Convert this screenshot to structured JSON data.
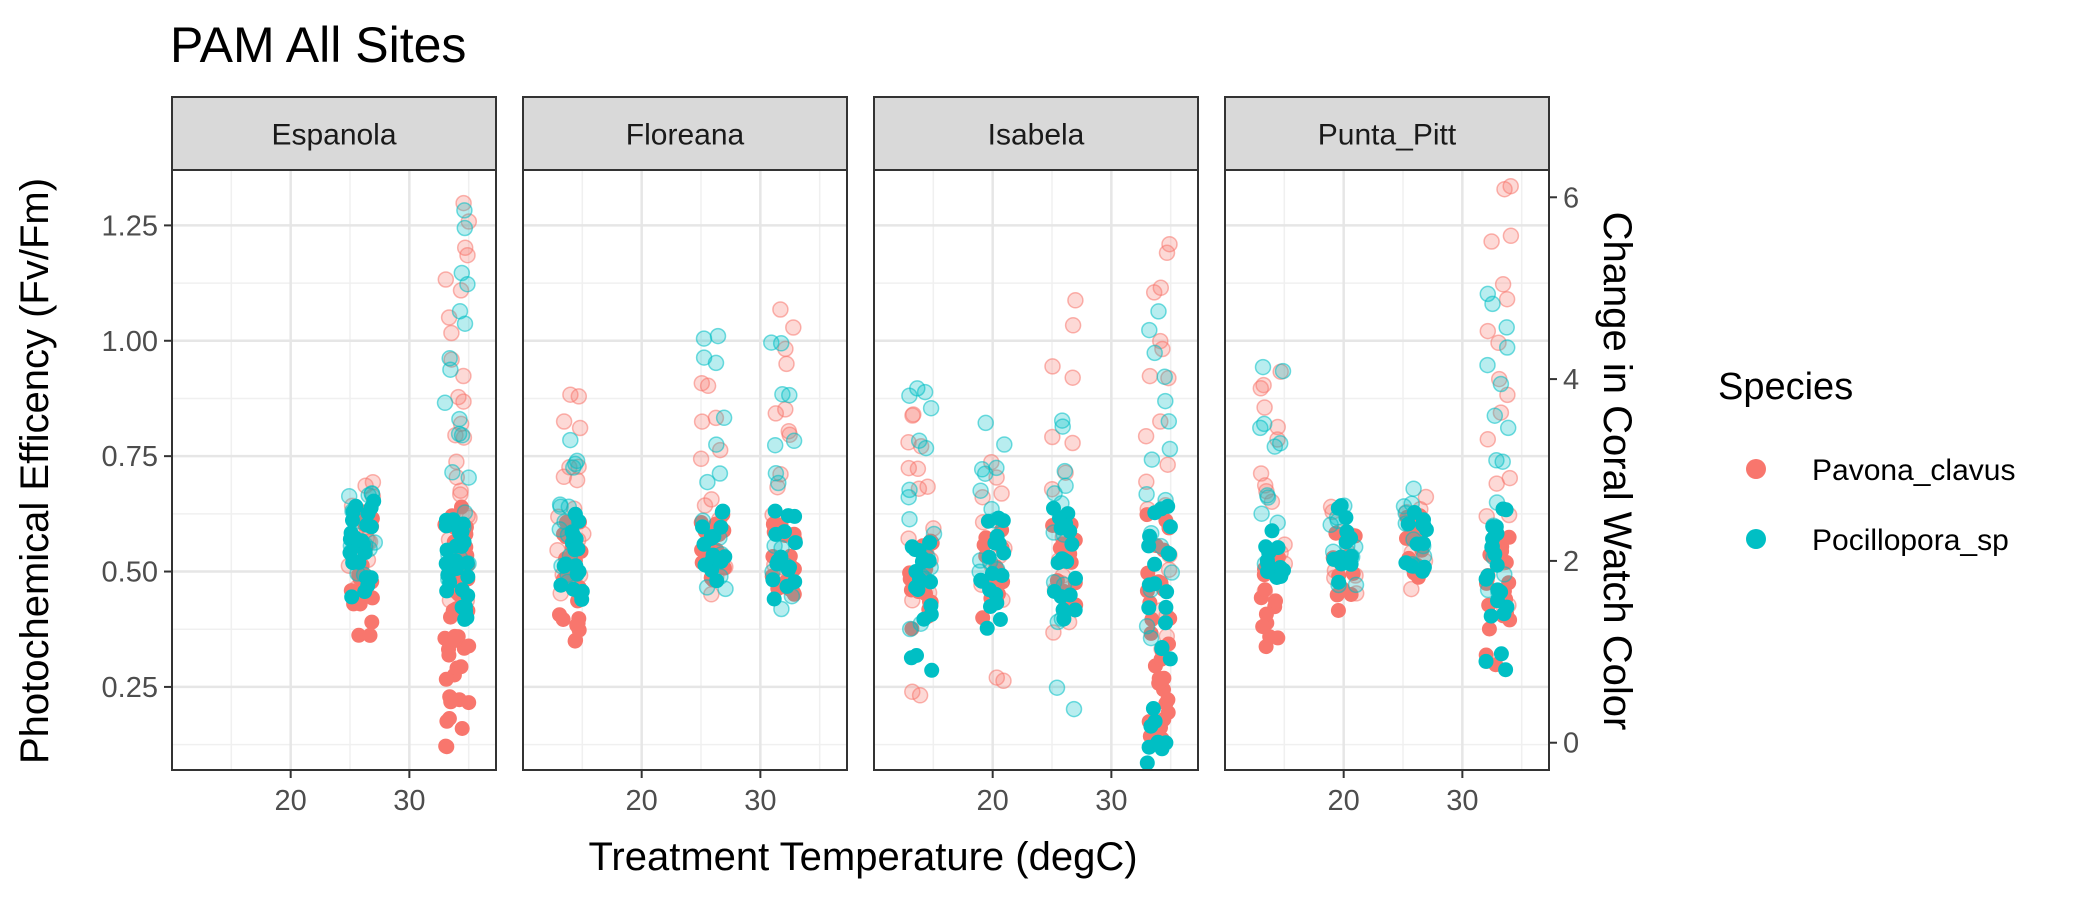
{
  "chart_data": {
    "type": "scatter",
    "title": "PAM All Sites",
    "xlabel": "Treatment Temperature (degC)",
    "ylabel": "Photochemical Efficency (Fv/Fm)",
    "y2label": "Change in Coral Watch Color",
    "xlim": [
      10,
      37.3
    ],
    "ylim": [
      0.07,
      1.37
    ],
    "y2lim": [
      -0.3,
      6.3
    ],
    "x_ticks": [
      "20",
      "30"
    ],
    "y_ticks": [
      "0.25",
      "0.50",
      "0.75",
      "1.00",
      "1.25"
    ],
    "y2_ticks": [
      "0",
      "2",
      "4",
      "6"
    ],
    "grid": true,
    "panels": [
      "Espanola",
      "Floreana",
      "Isabela",
      "Punta_Pitt"
    ],
    "legend": {
      "title": "Species",
      "position": "right",
      "entries": [
        {
          "name": "Pavona_clavus",
          "color": "#F8766D"
        },
        {
          "name": "Pocillopora_sp",
          "color": "#00BFC4"
        }
      ]
    },
    "groups": [
      {
        "panel": "Espanola",
        "x": 26,
        "species": "Pavona_clavus",
        "pam": [
          0.37,
          0.44,
          0.47,
          0.5,
          0.53,
          0.56,
          0.6,
          0.62
        ],
        "color_change": [
          1.8,
          2.0,
          2.2,
          2.3,
          2.5,
          2.6,
          2.8
        ]
      },
      {
        "panel": "Espanola",
        "x": 26,
        "species": "Pocillopora_sp",
        "pam": [
          0.47,
          0.5,
          0.52,
          0.55,
          0.57,
          0.59,
          0.62,
          0.63
        ],
        "color_change": [
          1.9,
          2.0,
          2.2,
          2.3,
          2.4,
          2.6,
          2.8
        ]
      },
      {
        "panel": "Espanola",
        "x": 34,
        "species": "Pavona_clavus",
        "pam": [
          0.14,
          0.2,
          0.22,
          0.28,
          0.31,
          0.34,
          0.36,
          0.38,
          0.4,
          0.42,
          0.44,
          0.46,
          0.48,
          0.5,
          0.52,
          0.55,
          0.58,
          0.6,
          0.62
        ],
        "color_change": [
          1.6,
          1.8,
          2.0,
          2.3,
          2.6,
          2.9,
          3.2,
          3.5,
          3.8,
          4.2,
          4.6,
          5.0,
          5.3,
          5.9
        ]
      },
      {
        "panel": "Espanola",
        "x": 34,
        "species": "Pocillopora_sp",
        "pam": [
          0.4,
          0.44,
          0.47,
          0.5,
          0.52,
          0.54,
          0.56,
          0.58,
          0.6,
          0.62
        ],
        "color_change": [
          1.9,
          2.2,
          2.5,
          2.9,
          3.3,
          3.7,
          4.2,
          4.7,
          5.2,
          5.8
        ]
      },
      {
        "panel": "Floreana",
        "x": 14,
        "species": "Pavona_clavus",
        "pam": [
          0.36,
          0.39,
          0.42,
          0.45,
          0.48,
          0.51,
          0.54,
          0.57,
          0.6
        ],
        "color_change": [
          1.8,
          2.0,
          2.2,
          2.4,
          2.6,
          2.8,
          3.1,
          3.4,
          3.7
        ]
      },
      {
        "panel": "Floreana",
        "x": 14,
        "species": "Pocillopora_sp",
        "pam": [
          0.45,
          0.48,
          0.51,
          0.54,
          0.57,
          0.6
        ],
        "color_change": [
          1.9,
          2.1,
          2.3,
          2.5,
          2.7,
          3.0,
          3.2
        ]
      },
      {
        "panel": "Floreana",
        "x": 26,
        "species": "Pavona_clavus",
        "pam": [
          0.48,
          0.5,
          0.53,
          0.56,
          0.59,
          0.61
        ],
        "color_change": [
          1.8,
          2.0,
          2.3,
          2.7,
          3.1,
          3.6,
          4.0
        ]
      },
      {
        "panel": "Floreana",
        "x": 26,
        "species": "Pocillopora_sp",
        "pam": [
          0.5,
          0.53,
          0.56,
          0.59,
          0.62
        ],
        "color_change": [
          1.7,
          2.0,
          2.4,
          2.9,
          3.4,
          4.1,
          4.5
        ]
      },
      {
        "panel": "Floreana",
        "x": 32,
        "species": "Pavona_clavus",
        "pam": [
          0.44,
          0.47,
          0.5,
          0.53,
          0.56,
          0.59,
          0.61
        ],
        "color_change": [
          1.8,
          2.1,
          2.5,
          2.9,
          3.3,
          3.7,
          4.2,
          4.6
        ]
      },
      {
        "panel": "Floreana",
        "x": 32,
        "species": "Pocillopora_sp",
        "pam": [
          0.46,
          0.5,
          0.54,
          0.58,
          0.61
        ],
        "color_change": [
          1.5,
          1.9,
          2.3,
          2.8,
          3.3,
          3.9,
          4.5
        ]
      },
      {
        "panel": "Isabela",
        "x": 14,
        "species": "Pavona_clavus",
        "pam": [
          0.4,
          0.44,
          0.48,
          0.52,
          0.55
        ],
        "color_change": [
          0.6,
          1.6,
          2.0,
          2.3,
          2.7,
          3.0,
          3.3,
          3.6
        ]
      },
      {
        "panel": "Isabela",
        "x": 14,
        "species": "Pocillopora_sp",
        "pam": [
          0.31,
          0.42,
          0.46,
          0.5,
          0.54,
          0.57
        ],
        "color_change": [
          1.3,
          1.8,
          2.1,
          2.4,
          2.8,
          3.2,
          3.7,
          4.0
        ]
      },
      {
        "panel": "Isabela",
        "x": 20,
        "species": "Pavona_clavus",
        "pam": [
          0.42,
          0.46,
          0.5,
          0.54,
          0.58
        ],
        "color_change": [
          0.6,
          1.7,
          2.0,
          2.3,
          2.7,
          3.0
        ]
      },
      {
        "panel": "Isabela",
        "x": 20,
        "species": "Pocillopora_sp",
        "pam": [
          0.4,
          0.44,
          0.48,
          0.52,
          0.56,
          0.6
        ],
        "color_change": [
          1.8,
          2.1,
          2.4,
          2.8,
          3.1,
          3.4
        ]
      },
      {
        "panel": "Isabela",
        "x": 26,
        "species": "Pavona_clavus",
        "pam": [
          0.44,
          0.48,
          0.52,
          0.56,
          0.6
        ],
        "color_change": [
          1.2,
          1.6,
          2.0,
          2.4,
          2.9,
          3.4,
          4.0,
          4.7
        ]
      },
      {
        "panel": "Isabela",
        "x": 26,
        "species": "Pocillopora_sp",
        "pam": [
          0.42,
          0.46,
          0.5,
          0.54,
          0.58,
          0.62
        ],
        "color_change": [
          0.5,
          1.3,
          1.8,
          2.2,
          2.6,
          3.0,
          3.4
        ]
      },
      {
        "panel": "Isabela",
        "x": 34,
        "species": "Pavona_clavus",
        "pam": [
          0.12,
          0.16,
          0.2,
          0.24,
          0.28,
          0.32,
          0.38,
          0.44,
          0.5,
          0.56,
          0.6
        ],
        "color_change": [
          1.0,
          1.5,
          2.0,
          2.5,
          3.0,
          3.5,
          4.0,
          4.5,
          5.0,
          5.5
        ]
      },
      {
        "panel": "Isabela",
        "x": 34,
        "species": "Pocillopora_sp",
        "pam": [
          0.1,
          0.14,
          0.18,
          0.33,
          0.4,
          0.46,
          0.52,
          0.58,
          0.62
        ],
        "color_change": [
          1.2,
          1.7,
          2.2,
          2.7,
          3.2,
          3.7,
          4.2,
          4.6
        ]
      },
      {
        "panel": "Punta_Pitt",
        "x": 14,
        "species": "Pavona_clavus",
        "pam": [
          0.35,
          0.4,
          0.44,
          0.48,
          0.52
        ],
        "color_change": [
          1.8,
          2.2,
          2.6,
          3.0,
          3.4,
          3.8,
          4.1
        ]
      },
      {
        "panel": "Punta_Pitt",
        "x": 14,
        "species": "Pocillopora_sp",
        "pam": [
          0.48,
          0.51,
          0.54,
          0.57
        ],
        "color_change": [
          2.0,
          2.4,
          2.8,
          3.2,
          3.6,
          4.0
        ]
      },
      {
        "panel": "Punta_Pitt",
        "x": 20,
        "species": "Pavona_clavus",
        "pam": [
          0.44,
          0.48,
          0.52,
          0.56
        ],
        "color_change": [
          1.7,
          1.9,
          2.1,
          2.3,
          2.5
        ]
      },
      {
        "panel": "Punta_Pitt",
        "x": 20,
        "species": "Pocillopora_sp",
        "pam": [
          0.5,
          0.54,
          0.58,
          0.62
        ],
        "color_change": [
          1.8,
          2.0,
          2.2,
          2.4,
          2.6
        ]
      },
      {
        "panel": "Punta_Pitt",
        "x": 26,
        "species": "Pavona_clavus",
        "pam": [
          0.48,
          0.52,
          0.56,
          0.6
        ],
        "color_change": [
          1.8,
          2.0,
          2.2,
          2.4,
          2.6
        ]
      },
      {
        "panel": "Punta_Pitt",
        "x": 26,
        "species": "Pocillopora_sp",
        "pam": [
          0.5,
          0.54,
          0.58,
          0.62
        ],
        "color_change": [
          1.9,
          2.1,
          2.3,
          2.5,
          2.7
        ]
      },
      {
        "panel": "Punta_Pitt",
        "x": 33,
        "species": "Pavona_clavus",
        "pam": [
          0.3,
          0.38,
          0.42,
          0.46,
          0.5,
          0.54,
          0.58
        ],
        "color_change": [
          1.5,
          2.0,
          2.5,
          3.0,
          3.5,
          4.0,
          4.5,
          5.0,
          5.5,
          6.0
        ]
      },
      {
        "panel": "Punta_Pitt",
        "x": 33,
        "species": "Pocillopora_sp",
        "pam": [
          0.3,
          0.4,
          0.46,
          0.5,
          0.54,
          0.58,
          0.62
        ],
        "color_change": [
          1.6,
          2.0,
          2.5,
          3.0,
          3.5,
          4.0,
          4.5,
          5.0
        ]
      }
    ]
  }
}
